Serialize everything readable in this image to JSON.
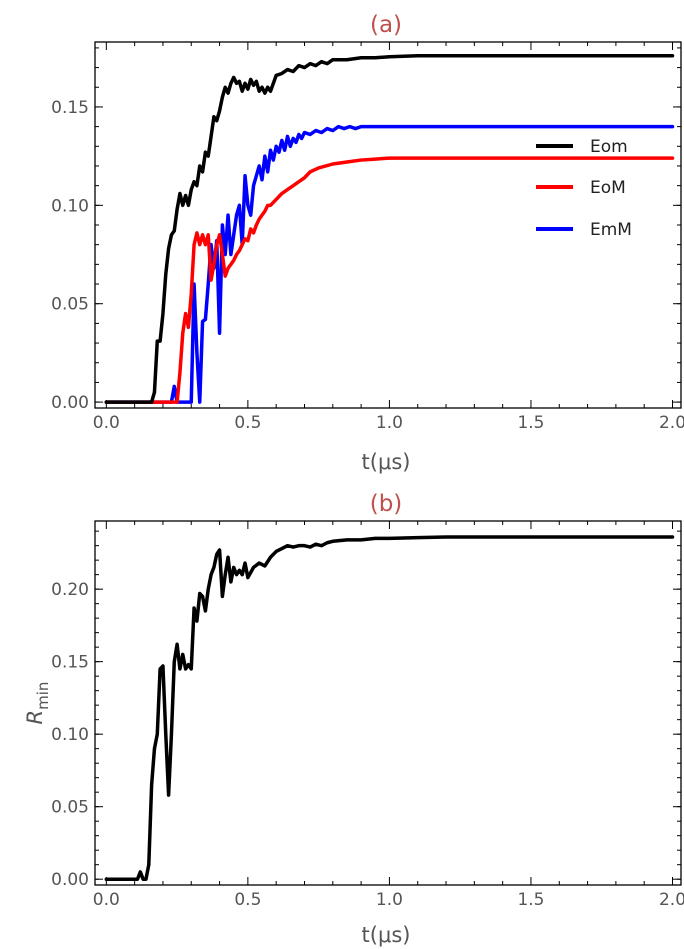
{
  "chart_data": [
    {
      "type": "line",
      "title": "(a)",
      "title_color": "#c0504d",
      "xlabel": "t(μs)",
      "ylabel": "",
      "xlim": [
        -0.04,
        2.03
      ],
      "ylim": [
        -0.003,
        0.183
      ],
      "xticks": [
        0.0,
        0.5,
        1.0,
        1.5,
        2.0
      ],
      "xtick_labels": [
        "0.0",
        "0.5",
        "1.0",
        "1.5",
        "2.0"
      ],
      "yticks": [
        0.0,
        0.05,
        0.1,
        0.15
      ],
      "ytick_labels": [
        "0.00",
        "0.05",
        "0.10",
        "0.15"
      ],
      "grid": false,
      "legend_position": "right",
      "series": [
        {
          "name": "Eom",
          "color": "#000000",
          "x": [
            0.0,
            0.16,
            0.17,
            0.18,
            0.19,
            0.2,
            0.21,
            0.22,
            0.23,
            0.24,
            0.25,
            0.26,
            0.27,
            0.28,
            0.29,
            0.3,
            0.31,
            0.32,
            0.33,
            0.34,
            0.35,
            0.36,
            0.37,
            0.38,
            0.39,
            0.4,
            0.41,
            0.42,
            0.43,
            0.44,
            0.45,
            0.46,
            0.47,
            0.48,
            0.49,
            0.5,
            0.51,
            0.52,
            0.53,
            0.54,
            0.55,
            0.56,
            0.57,
            0.58,
            0.59,
            0.6,
            0.62,
            0.64,
            0.66,
            0.68,
            0.7,
            0.72,
            0.74,
            0.76,
            0.78,
            0.8,
            0.85,
            0.9,
            0.95,
            1.0,
            1.1,
            1.2,
            1.4,
            1.6,
            1.8,
            2.0
          ],
          "y": [
            0.0,
            0.0,
            0.005,
            0.031,
            0.031,
            0.045,
            0.065,
            0.078,
            0.085,
            0.087,
            0.098,
            0.106,
            0.1,
            0.105,
            0.1,
            0.108,
            0.112,
            0.11,
            0.12,
            0.117,
            0.127,
            0.125,
            0.135,
            0.145,
            0.143,
            0.148,
            0.155,
            0.16,
            0.157,
            0.162,
            0.165,
            0.162,
            0.163,
            0.158,
            0.162,
            0.159,
            0.164,
            0.161,
            0.163,
            0.158,
            0.16,
            0.157,
            0.16,
            0.158,
            0.162,
            0.166,
            0.167,
            0.169,
            0.168,
            0.171,
            0.17,
            0.172,
            0.171,
            0.173,
            0.172,
            0.174,
            0.174,
            0.175,
            0.175,
            0.1755,
            0.176,
            0.176,
            0.176,
            0.176,
            0.176,
            0.176
          ]
        },
        {
          "name": "EoM",
          "color": "#ff0000",
          "x": [
            0.0,
            0.25,
            0.26,
            0.27,
            0.28,
            0.29,
            0.3,
            0.31,
            0.32,
            0.33,
            0.34,
            0.35,
            0.36,
            0.37,
            0.38,
            0.39,
            0.4,
            0.41,
            0.42,
            0.43,
            0.44,
            0.45,
            0.46,
            0.47,
            0.48,
            0.49,
            0.5,
            0.51,
            0.52,
            0.53,
            0.54,
            0.55,
            0.56,
            0.57,
            0.58,
            0.6,
            0.62,
            0.64,
            0.66,
            0.68,
            0.7,
            0.72,
            0.75,
            0.8,
            0.85,
            0.9,
            0.95,
            1.0,
            1.1,
            1.2,
            1.4,
            1.6,
            1.8,
            2.0
          ],
          "y": [
            0.0,
            0.0,
            0.015,
            0.035,
            0.045,
            0.038,
            0.055,
            0.08,
            0.086,
            0.08,
            0.085,
            0.08,
            0.085,
            0.062,
            0.07,
            0.08,
            0.085,
            0.075,
            0.064,
            0.068,
            0.07,
            0.072,
            0.075,
            0.077,
            0.08,
            0.083,
            0.082,
            0.088,
            0.086,
            0.09,
            0.093,
            0.095,
            0.097,
            0.1,
            0.1,
            0.103,
            0.106,
            0.108,
            0.11,
            0.112,
            0.114,
            0.117,
            0.119,
            0.121,
            0.122,
            0.123,
            0.1235,
            0.124,
            0.124,
            0.124,
            0.124,
            0.124,
            0.124,
            0.124
          ]
        },
        {
          "name": "EmM",
          "color": "#0000ff",
          "x": [
            0.0,
            0.23,
            0.24,
            0.25,
            0.26,
            0.27,
            0.28,
            0.29,
            0.3,
            0.31,
            0.32,
            0.33,
            0.34,
            0.35,
            0.36,
            0.37,
            0.38,
            0.39,
            0.4,
            0.41,
            0.42,
            0.43,
            0.44,
            0.45,
            0.46,
            0.47,
            0.48,
            0.49,
            0.5,
            0.51,
            0.52,
            0.53,
            0.54,
            0.55,
            0.56,
            0.57,
            0.58,
            0.59,
            0.6,
            0.61,
            0.62,
            0.63,
            0.64,
            0.65,
            0.66,
            0.67,
            0.68,
            0.69,
            0.7,
            0.72,
            0.74,
            0.76,
            0.78,
            0.8,
            0.82,
            0.84,
            0.86,
            0.88,
            0.9,
            0.92,
            0.94,
            0.96,
            0.98,
            1.0,
            1.05,
            1.1,
            1.2,
            1.3,
            1.4,
            1.6,
            1.8,
            2.0
          ],
          "y": [
            0.0,
            0.0,
            0.008,
            0.0,
            0.0,
            0.0,
            0.0,
            0.0,
            0.0,
            0.06,
            0.025,
            0.0,
            0.041,
            0.042,
            0.06,
            0.08,
            0.068,
            0.082,
            0.035,
            0.09,
            0.075,
            0.095,
            0.075,
            0.085,
            0.095,
            0.1,
            0.08,
            0.115,
            0.1,
            0.095,
            0.11,
            0.115,
            0.12,
            0.113,
            0.125,
            0.117,
            0.128,
            0.123,
            0.13,
            0.127,
            0.133,
            0.128,
            0.135,
            0.13,
            0.134,
            0.132,
            0.136,
            0.134,
            0.137,
            0.136,
            0.138,
            0.137,
            0.139,
            0.138,
            0.14,
            0.139,
            0.14,
            0.139,
            0.14,
            0.14,
            0.14,
            0.14,
            0.14,
            0.14,
            0.14,
            0.14,
            0.14,
            0.14,
            0.14,
            0.14,
            0.14,
            0.14
          ]
        }
      ]
    },
    {
      "type": "line",
      "title": "(b)",
      "title_color": "#c0504d",
      "xlabel": "t(μs)",
      "ylabel": "R",
      "ylabel_sub": "min",
      "xlim": [
        -0.04,
        2.03
      ],
      "ylim": [
        -0.004,
        0.247
      ],
      "xticks": [
        0.0,
        0.5,
        1.0,
        1.5,
        2.0
      ],
      "xtick_labels": [
        "0.0",
        "0.5",
        "1.0",
        "1.5",
        "2.0"
      ],
      "yticks": [
        0.0,
        0.05,
        0.1,
        0.15,
        0.2
      ],
      "ytick_labels": [
        "0.00",
        "0.05",
        "0.10",
        "0.15",
        "0.20"
      ],
      "grid": false,
      "series": [
        {
          "color": "#000000",
          "x": [
            0.0,
            0.11,
            0.12,
            0.13,
            0.14,
            0.15,
            0.16,
            0.17,
            0.18,
            0.19,
            0.2,
            0.21,
            0.22,
            0.23,
            0.24,
            0.25,
            0.26,
            0.27,
            0.28,
            0.29,
            0.3,
            0.31,
            0.32,
            0.33,
            0.34,
            0.35,
            0.36,
            0.37,
            0.38,
            0.39,
            0.4,
            0.41,
            0.42,
            0.43,
            0.44,
            0.45,
            0.46,
            0.47,
            0.48,
            0.49,
            0.5,
            0.52,
            0.54,
            0.56,
            0.58,
            0.6,
            0.62,
            0.64,
            0.66,
            0.68,
            0.7,
            0.72,
            0.74,
            0.76,
            0.78,
            0.8,
            0.85,
            0.9,
            0.95,
            1.0,
            1.1,
            1.2,
            1.4,
            1.6,
            1.8,
            2.0
          ],
          "y": [
            0.0,
            0.0,
            0.005,
            0.0,
            0.0,
            0.01,
            0.065,
            0.09,
            0.1,
            0.145,
            0.147,
            0.1,
            0.058,
            0.1,
            0.15,
            0.162,
            0.145,
            0.155,
            0.145,
            0.148,
            0.145,
            0.187,
            0.178,
            0.197,
            0.195,
            0.185,
            0.2,
            0.21,
            0.215,
            0.224,
            0.227,
            0.195,
            0.21,
            0.222,
            0.205,
            0.215,
            0.21,
            0.213,
            0.21,
            0.218,
            0.208,
            0.215,
            0.218,
            0.216,
            0.222,
            0.226,
            0.228,
            0.23,
            0.229,
            0.23,
            0.23,
            0.229,
            0.231,
            0.23,
            0.232,
            0.233,
            0.234,
            0.234,
            0.235,
            0.235,
            0.2355,
            0.236,
            0.236,
            0.236,
            0.236,
            0.236
          ]
        }
      ]
    }
  ]
}
